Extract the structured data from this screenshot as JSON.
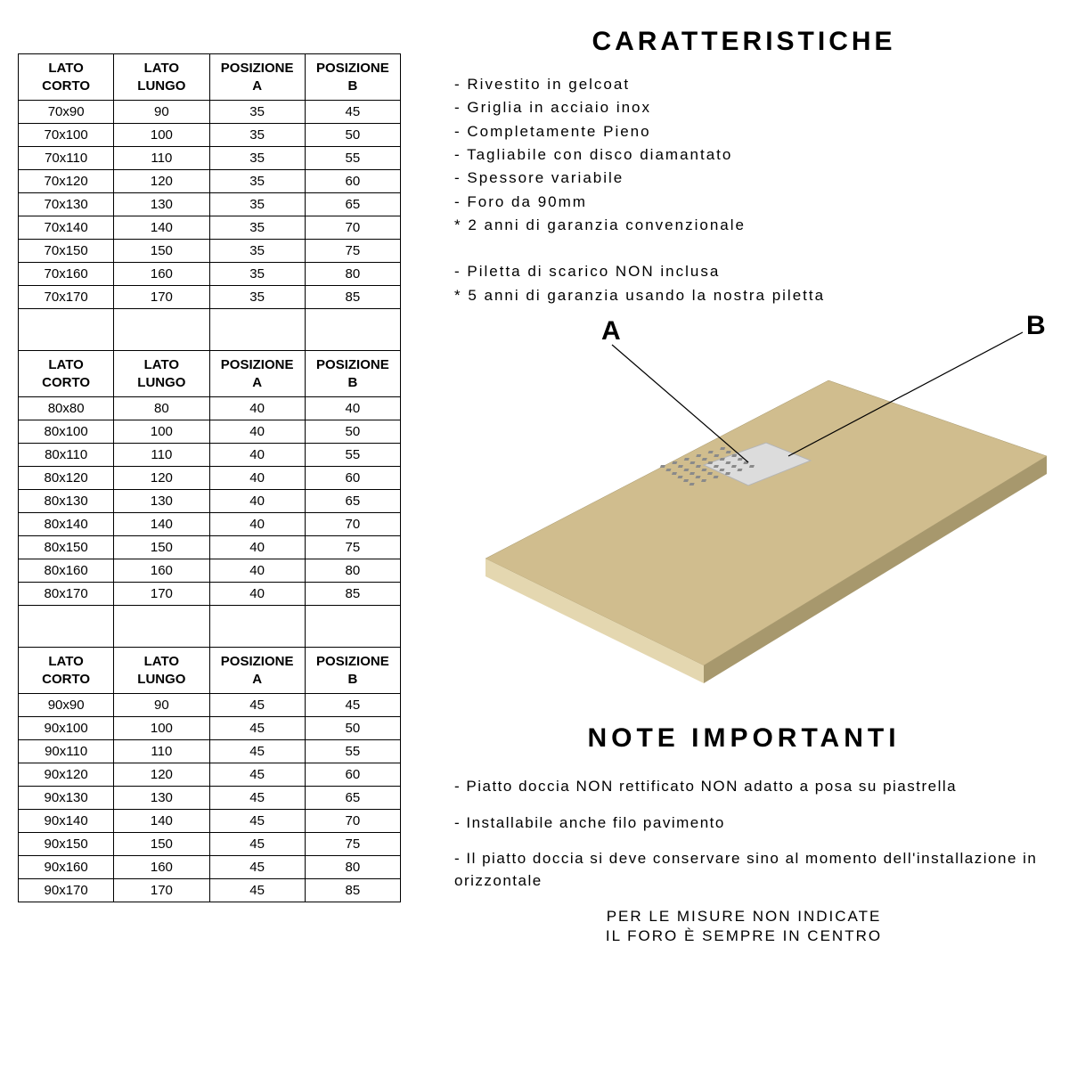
{
  "table": {
    "columns": [
      "LATO CORTO",
      "LATO LUNGO",
      "POSIZIONE A",
      "POSIZIONE B"
    ],
    "col_widths": [
      "25%",
      "25%",
      "25%",
      "25%"
    ],
    "font_size": 15,
    "border_color": "#000000",
    "groups": [
      {
        "rows": [
          [
            "70x90",
            "90",
            "35",
            "45"
          ],
          [
            "70x100",
            "100",
            "35",
            "50"
          ],
          [
            "70x110",
            "110",
            "35",
            "55"
          ],
          [
            "70x120",
            "120",
            "35",
            "60"
          ],
          [
            "70x130",
            "130",
            "35",
            "65"
          ],
          [
            "70x140",
            "140",
            "35",
            "70"
          ],
          [
            "70x150",
            "150",
            "35",
            "75"
          ],
          [
            "70x160",
            "160",
            "35",
            "80"
          ],
          [
            "70x170",
            "170",
            "35",
            "85"
          ]
        ]
      },
      {
        "rows": [
          [
            "80x80",
            "80",
            "40",
            "40"
          ],
          [
            "80x100",
            "100",
            "40",
            "50"
          ],
          [
            "80x110",
            "110",
            "40",
            "55"
          ],
          [
            "80x120",
            "120",
            "40",
            "60"
          ],
          [
            "80x130",
            "130",
            "40",
            "65"
          ],
          [
            "80x140",
            "140",
            "40",
            "70"
          ],
          [
            "80x150",
            "150",
            "40",
            "75"
          ],
          [
            "80x160",
            "160",
            "40",
            "80"
          ],
          [
            "80x170",
            "170",
            "40",
            "85"
          ]
        ]
      },
      {
        "rows": [
          [
            "90x90",
            "90",
            "45",
            "45"
          ],
          [
            "90x100",
            "100",
            "45",
            "50"
          ],
          [
            "90x110",
            "110",
            "45",
            "55"
          ],
          [
            "90x120",
            "120",
            "45",
            "60"
          ],
          [
            "90x130",
            "130",
            "45",
            "65"
          ],
          [
            "90x140",
            "140",
            "45",
            "70"
          ],
          [
            "90x150",
            "150",
            "45",
            "75"
          ],
          [
            "90x160",
            "160",
            "45",
            "80"
          ],
          [
            "90x170",
            "170",
            "45",
            "85"
          ]
        ]
      }
    ]
  },
  "headings": {
    "features": "CARATTERISTICHE",
    "notes": "NOTE IMPORTANTI"
  },
  "features_block1": [
    "- Rivestito in gelcoat",
    "- Griglia in acciaio inox",
    "- Completamente Pieno",
    "- Tagliabile con disco diamantato",
    "- Spessore variabile",
    "- Foro da 90mm",
    "* 2 anni di garanzia convenzionale"
  ],
  "features_block2": [
    "- Piletta di scarico NON inclusa",
    "* 5 anni di garanzia usando la nostra piletta"
  ],
  "diagram": {
    "label_a": "A",
    "label_b": "B",
    "tray_color": "#d0bd8e",
    "tray_shadow": "#a7986d",
    "tray_edge": "#e4d7b0",
    "grid_color": "#dcdcdc",
    "grid_border": "#b5b5b5",
    "line_color": "#000000"
  },
  "notes": [
    "- Piatto doccia NON rettificato NON adatto a posa su piastrella",
    "- Installabile anche filo pavimento",
    "- Il piatto doccia si deve conservare sino al momento dell'installazione in orizzontale"
  ],
  "footer": {
    "line1": "PER LE MISURE NON INDICATE",
    "line2": "IL FORO È SEMPRE IN CENTRO"
  },
  "style": {
    "background": "#ffffff",
    "text_color": "#000000",
    "heading_fontsize": 30,
    "body_fontsize": 17,
    "letter_spacing_heading": 4,
    "letter_spacing_body": 2
  }
}
